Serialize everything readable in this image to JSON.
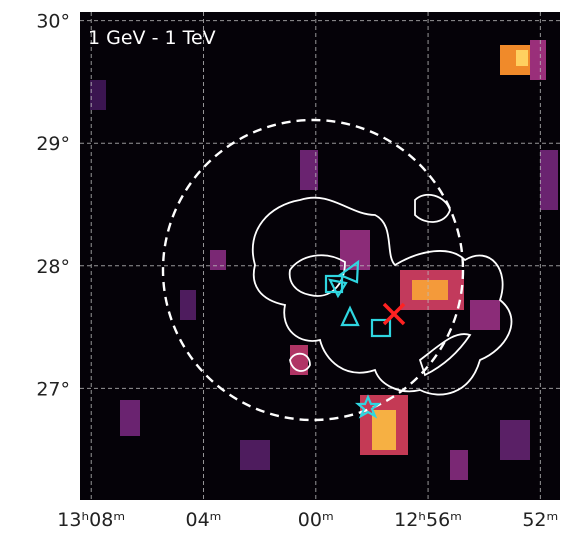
{
  "chart_data": {
    "type": "skymap",
    "annotation": "1 GeV - 1 TeV",
    "xlim": [
      788.4,
      771.3
    ],
    "ylim": [
      26.09,
      30.07
    ],
    "xticks": [
      {
        "value": 788,
        "label": "13ʰ08ᵐ"
      },
      {
        "value": 784,
        "label": "04ᵐ"
      },
      {
        "value": 780,
        "label": "00ᵐ"
      },
      {
        "value": 776,
        "label": "12ʰ56ᵐ"
      },
      {
        "value": 772,
        "label": "52ᵐ"
      }
    ],
    "yticks": [
      {
        "value": 30,
        "label": "30°"
      },
      {
        "value": 29,
        "label": "29°"
      },
      {
        "value": 28,
        "label": "28°"
      },
      {
        "value": 27,
        "label": "27°"
      }
    ],
    "grid": true
  }
}
